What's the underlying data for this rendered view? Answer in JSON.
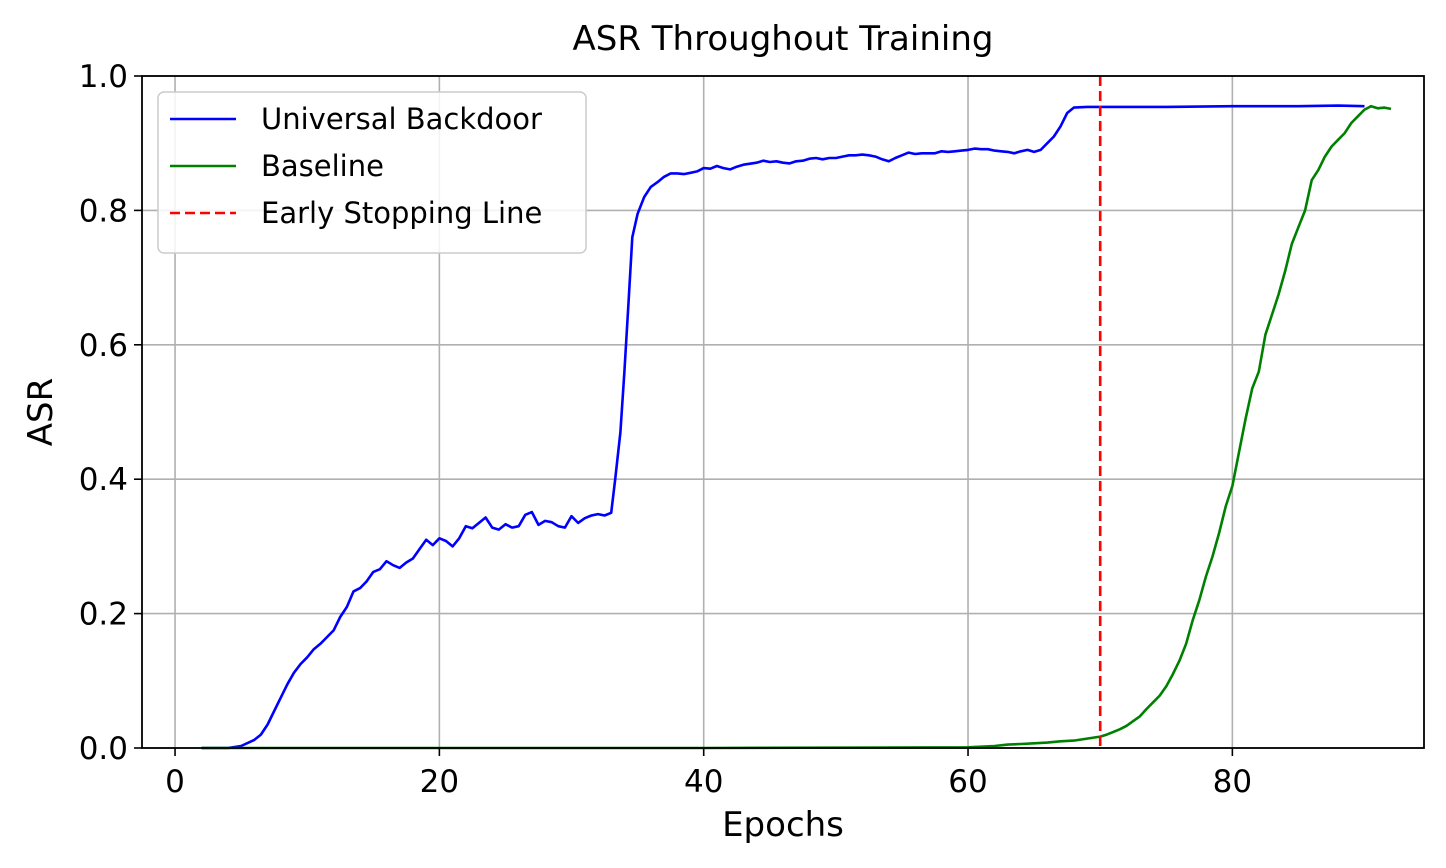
{
  "chart_data": {
    "type": "line",
    "title": "ASR Throughout Training",
    "xlabel": "Epochs",
    "ylabel": "ASR",
    "xlim": [
      -2.5,
      94.5
    ],
    "ylim": [
      0.0,
      1.0
    ],
    "xticks": [
      0,
      20,
      40,
      60,
      80
    ],
    "xtick_labels": [
      "0",
      "20",
      "40",
      "60",
      "80"
    ],
    "yticks": [
      0.0,
      0.2,
      0.4,
      0.6,
      0.8,
      1.0
    ],
    "ytick_labels": [
      "0.0",
      "0.2",
      "0.4",
      "0.6",
      "0.8",
      "1.0"
    ],
    "grid": true,
    "legend_position": "top-left",
    "series": [
      {
        "name": "Universal Backdoor",
        "color": "#0000ff",
        "style": "solid",
        "points": [
          [
            2,
            0.0
          ],
          [
            4,
            0.0
          ],
          [
            5,
            0.003
          ],
          [
            6,
            0.012
          ],
          [
            6.5,
            0.02
          ],
          [
            7,
            0.035
          ],
          [
            7.5,
            0.055
          ],
          [
            8,
            0.075
          ],
          [
            8.5,
            0.095
          ],
          [
            9,
            0.112
          ],
          [
            9.5,
            0.125
          ],
          [
            10,
            0.135
          ],
          [
            10.5,
            0.147
          ],
          [
            11,
            0.155
          ],
          [
            11.5,
            0.165
          ],
          [
            12,
            0.175
          ],
          [
            12.5,
            0.195
          ],
          [
            13,
            0.21
          ],
          [
            13.5,
            0.233
          ],
          [
            14,
            0.238
          ],
          [
            14.5,
            0.248
          ],
          [
            15,
            0.262
          ],
          [
            15.5,
            0.266
          ],
          [
            16,
            0.278
          ],
          [
            16.5,
            0.272
          ],
          [
            17,
            0.268
          ],
          [
            17.5,
            0.276
          ],
          [
            18,
            0.282
          ],
          [
            18.5,
            0.296
          ],
          [
            19,
            0.31
          ],
          [
            19.5,
            0.302
          ],
          [
            20,
            0.312
          ],
          [
            20.5,
            0.308
          ],
          [
            21,
            0.3
          ],
          [
            21.5,
            0.312
          ],
          [
            22,
            0.33
          ],
          [
            22.5,
            0.327
          ],
          [
            23,
            0.335
          ],
          [
            23.5,
            0.343
          ],
          [
            24,
            0.328
          ],
          [
            24.5,
            0.325
          ],
          [
            25,
            0.333
          ],
          [
            25.5,
            0.328
          ],
          [
            26,
            0.33
          ],
          [
            26.5,
            0.347
          ],
          [
            27,
            0.351
          ],
          [
            27.5,
            0.332
          ],
          [
            28,
            0.338
          ],
          [
            28.5,
            0.336
          ],
          [
            29,
            0.33
          ],
          [
            29.5,
            0.328
          ],
          [
            30,
            0.345
          ],
          [
            30.5,
            0.335
          ],
          [
            31,
            0.342
          ],
          [
            31.5,
            0.346
          ],
          [
            32,
            0.348
          ],
          [
            32.5,
            0.346
          ],
          [
            33,
            0.35
          ],
          [
            33.3,
            0.4
          ],
          [
            33.7,
            0.47
          ],
          [
            34,
            0.56
          ],
          [
            34.3,
            0.66
          ],
          [
            34.6,
            0.76
          ],
          [
            35,
            0.795
          ],
          [
            35.5,
            0.82
          ],
          [
            36,
            0.835
          ],
          [
            36.5,
            0.842
          ],
          [
            37,
            0.85
          ],
          [
            37.5,
            0.855
          ],
          [
            38,
            0.855
          ],
          [
            38.5,
            0.854
          ],
          [
            39,
            0.856
          ],
          [
            39.5,
            0.858
          ],
          [
            40,
            0.863
          ],
          [
            40.5,
            0.862
          ],
          [
            41,
            0.866
          ],
          [
            41.5,
            0.863
          ],
          [
            42,
            0.861
          ],
          [
            42.5,
            0.865
          ],
          [
            43,
            0.868
          ],
          [
            44,
            0.871
          ],
          [
            44.5,
            0.874
          ],
          [
            45,
            0.872
          ],
          [
            45.5,
            0.873
          ],
          [
            46,
            0.871
          ],
          [
            46.5,
            0.87
          ],
          [
            47,
            0.873
          ],
          [
            47.5,
            0.874
          ],
          [
            48,
            0.877
          ],
          [
            48.5,
            0.878
          ],
          [
            49,
            0.876
          ],
          [
            49.5,
            0.878
          ],
          [
            50,
            0.878
          ],
          [
            50.5,
            0.88
          ],
          [
            51,
            0.882
          ],
          [
            51.5,
            0.882
          ],
          [
            52,
            0.883
          ],
          [
            52.5,
            0.882
          ],
          [
            53,
            0.88
          ],
          [
            53.5,
            0.876
          ],
          [
            54,
            0.873
          ],
          [
            54.5,
            0.878
          ],
          [
            55,
            0.882
          ],
          [
            55.5,
            0.886
          ],
          [
            56,
            0.884
          ],
          [
            56.5,
            0.885
          ],
          [
            57,
            0.885
          ],
          [
            57.5,
            0.885
          ],
          [
            58,
            0.888
          ],
          [
            58.5,
            0.887
          ],
          [
            59,
            0.888
          ],
          [
            59.5,
            0.889
          ],
          [
            60,
            0.89
          ],
          [
            60.5,
            0.892
          ],
          [
            61,
            0.891
          ],
          [
            61.5,
            0.891
          ],
          [
            62,
            0.889
          ],
          [
            62.5,
            0.888
          ],
          [
            63,
            0.887
          ],
          [
            63.5,
            0.885
          ],
          [
            64,
            0.888
          ],
          [
            64.5,
            0.89
          ],
          [
            65,
            0.887
          ],
          [
            65.5,
            0.89
          ],
          [
            66,
            0.9
          ],
          [
            66.5,
            0.91
          ],
          [
            67,
            0.925
          ],
          [
            67.5,
            0.945
          ],
          [
            68,
            0.953
          ],
          [
            69,
            0.954
          ],
          [
            72,
            0.954
          ],
          [
            75,
            0.954
          ],
          [
            80,
            0.955
          ],
          [
            85,
            0.955
          ],
          [
            88,
            0.956
          ],
          [
            90,
            0.955
          ]
        ]
      },
      {
        "name": "Baseline",
        "color": "#008000",
        "style": "solid",
        "points": [
          [
            2,
            0.0
          ],
          [
            20,
            0.0
          ],
          [
            40,
            0.0
          ],
          [
            60,
            0.001
          ],
          [
            61,
            0.002
          ],
          [
            62,
            0.003
          ],
          [
            63,
            0.005
          ],
          [
            64,
            0.006
          ],
          [
            65,
            0.007
          ],
          [
            66,
            0.008
          ],
          [
            67,
            0.01
          ],
          [
            68,
            0.011
          ],
          [
            69,
            0.014
          ],
          [
            70,
            0.017
          ],
          [
            70.5,
            0.02
          ],
          [
            71,
            0.024
          ],
          [
            71.5,
            0.028
          ],
          [
            72,
            0.033
          ],
          [
            72.5,
            0.04
          ],
          [
            73,
            0.047
          ],
          [
            73.5,
            0.058
          ],
          [
            74,
            0.068
          ],
          [
            74.5,
            0.078
          ],
          [
            75,
            0.092
          ],
          [
            75.5,
            0.11
          ],
          [
            76,
            0.13
          ],
          [
            76.5,
            0.155
          ],
          [
            77,
            0.19
          ],
          [
            77.5,
            0.22
          ],
          [
            78,
            0.255
          ],
          [
            78.5,
            0.285
          ],
          [
            79,
            0.32
          ],
          [
            79.5,
            0.36
          ],
          [
            80,
            0.39
          ],
          [
            80.5,
            0.44
          ],
          [
            81,
            0.49
          ],
          [
            81.5,
            0.535
          ],
          [
            82,
            0.56
          ],
          [
            82.5,
            0.615
          ],
          [
            83,
            0.645
          ],
          [
            83.5,
            0.675
          ],
          [
            84,
            0.71
          ],
          [
            84.5,
            0.75
          ],
          [
            85,
            0.775
          ],
          [
            85.5,
            0.8
          ],
          [
            86,
            0.845
          ],
          [
            86.5,
            0.86
          ],
          [
            87,
            0.88
          ],
          [
            87.5,
            0.895
          ],
          [
            88,
            0.905
          ],
          [
            88.5,
            0.915
          ],
          [
            89,
            0.93
          ],
          [
            89.5,
            0.94
          ],
          [
            90,
            0.95
          ],
          [
            90.5,
            0.955
          ],
          [
            91,
            0.952
          ],
          [
            91.5,
            0.953
          ],
          [
            92,
            0.951
          ]
        ]
      },
      {
        "name": "Early Stopping Line",
        "color": "#ff0000",
        "style": "dashed",
        "x_constant": 70
      }
    ]
  }
}
